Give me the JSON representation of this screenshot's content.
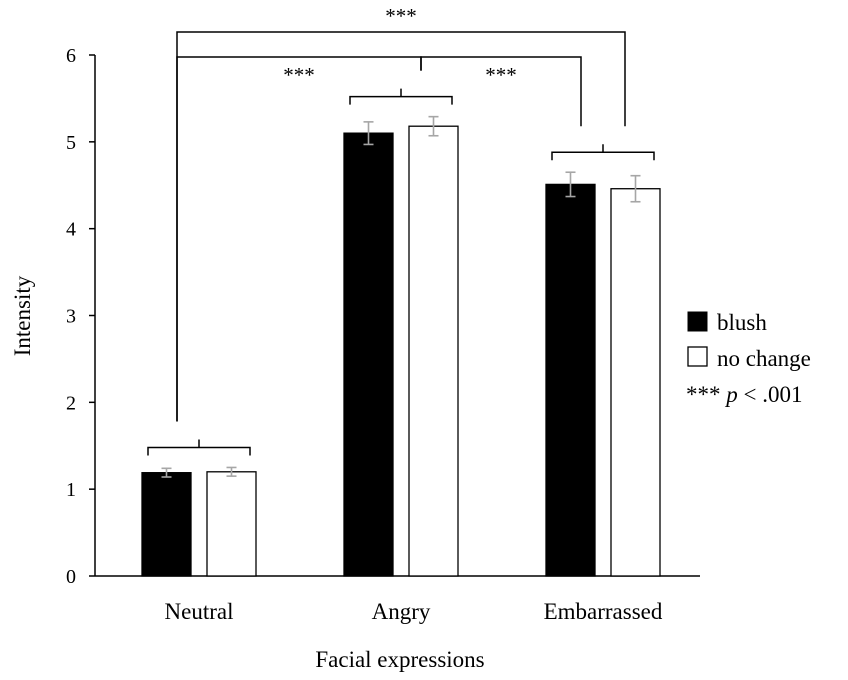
{
  "chart_data": {
    "type": "bar",
    "xlabel": "Facial expressions",
    "ylabel": "Intensity",
    "ylim": [
      0,
      6
    ],
    "yticks": [
      "0",
      "1",
      "2",
      "3",
      "4",
      "5",
      "6"
    ],
    "categories": [
      "Neutral",
      "Angry",
      "Embarrassed"
    ],
    "series": [
      {
        "name": "blush",
        "fill": "#000000",
        "values": [
          1.19,
          5.1,
          4.51
        ],
        "errors": [
          0.05,
          0.13,
          0.14
        ]
      },
      {
        "name": "no change",
        "fill": "#ffffff",
        "values": [
          1.2,
          5.18,
          4.46
        ],
        "errors": [
          0.05,
          0.11,
          0.15
        ]
      }
    ],
    "error_bar_color": "#a6a6a6",
    "significance": [
      {
        "from": "Neutral",
        "to": "Angry",
        "label": "***"
      },
      {
        "from": "Angry",
        "to": "Embarrassed",
        "label": "***"
      },
      {
        "from": "Neutral",
        "to": "Embarrassed",
        "label": "***"
      }
    ],
    "legend": {
      "position": "right"
    },
    "note": {
      "stars": "***",
      "p": "p",
      "text": "< .001"
    },
    "grid": false
  }
}
